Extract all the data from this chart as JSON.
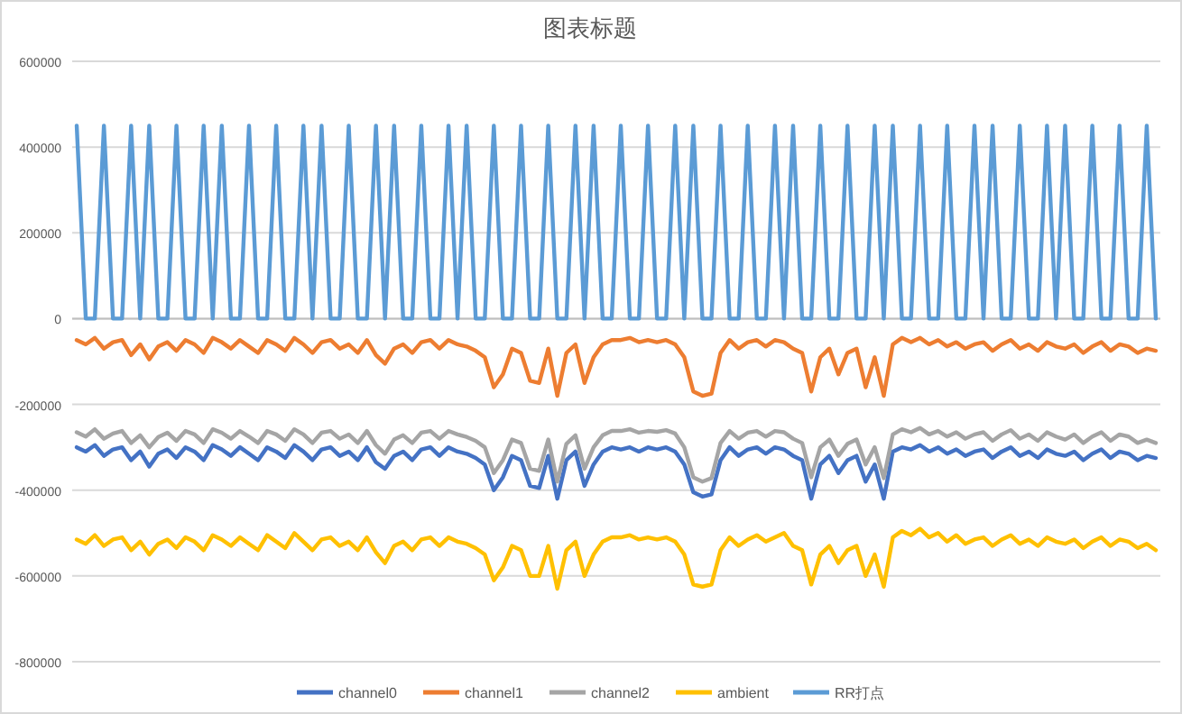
{
  "chart_data": {
    "type": "line",
    "title": "图表标题",
    "categories": [
      null,
      null,
      null,
      null,
      null,
      null,
      null,
      null,
      null,
      null,
      null,
      null,
      null,
      null,
      null,
      null,
      null,
      null,
      null,
      null,
      null,
      null,
      null,
      null,
      null,
      null,
      null,
      null,
      null,
      null,
      null,
      null,
      null,
      null,
      null,
      null,
      null,
      null,
      null,
      null,
      null,
      null,
      null,
      null,
      null,
      null,
      null,
      null,
      null,
      null,
      null,
      null,
      null,
      null,
      null,
      null,
      null,
      null,
      null,
      null,
      null,
      null,
      null,
      null,
      null,
      null,
      null,
      null,
      null,
      null,
      null,
      null,
      null,
      null,
      null,
      null,
      null,
      null,
      null,
      null,
      null,
      null,
      null,
      null,
      null,
      null,
      null,
      null,
      null,
      null,
      null,
      null,
      null,
      null,
      null,
      null,
      null,
      null,
      null,
      null,
      null,
      null,
      null,
      null,
      null,
      null,
      null,
      null,
      null,
      null,
      null,
      null,
      null,
      null,
      null,
      null,
      null,
      null,
      null,
      null
    ],
    "ylim": [
      -800000,
      600000
    ],
    "yticks": [
      -800000,
      -600000,
      -400000,
      -200000,
      0,
      200000,
      400000,
      600000
    ],
    "grid": "y",
    "legend": "bottom",
    "line_style": "solid",
    "marker": "none",
    "series": [
      {
        "name": "channel0",
        "color": "#4472c4",
        "values": [
          -300000,
          -310000,
          -295000,
          -320000,
          -305000,
          -300000,
          -330000,
          -310000,
          -345000,
          -315000,
          -305000,
          -325000,
          -300000,
          -310000,
          -330000,
          -295000,
          -305000,
          -320000,
          -300000,
          -315000,
          -330000,
          -300000,
          -310000,
          -325000,
          -295000,
          -310000,
          -330000,
          -305000,
          -300000,
          -320000,
          -310000,
          -330000,
          -300000,
          -335000,
          -350000,
          -320000,
          -310000,
          -330000,
          -305000,
          -300000,
          -320000,
          -300000,
          -310000,
          -315000,
          -325000,
          -340000,
          -400000,
          -370000,
          -320000,
          -330000,
          -390000,
          -395000,
          -320000,
          -420000,
          -330000,
          -310000,
          -390000,
          -340000,
          -310000,
          -300000,
          -305000,
          -300000,
          -310000,
          -300000,
          -305000,
          -300000,
          -310000,
          -340000,
          -405000,
          -415000,
          -410000,
          -330000,
          -300000,
          -320000,
          -305000,
          -300000,
          -315000,
          -300000,
          -305000,
          -320000,
          -330000,
          -420000,
          -340000,
          -320000,
          -360000,
          -330000,
          -320000,
          -380000,
          -340000,
          -420000,
          -310000,
          -300000,
          -305000,
          -295000,
          -310000,
          -300000,
          -315000,
          -305000,
          -320000,
          -310000,
          -305000,
          -325000,
          -310000,
          -300000,
          -320000,
          -310000,
          -325000,
          -305000,
          -315000,
          -320000,
          -310000,
          -330000,
          -315000,
          -305000,
          -325000,
          -310000,
          -315000,
          -330000,
          -320000,
          -325000
        ]
      },
      {
        "name": "channel1",
        "color": "#ed7d31",
        "values": [
          -50000,
          -60000,
          -45000,
          -70000,
          -55000,
          -50000,
          -85000,
          -60000,
          -95000,
          -65000,
          -55000,
          -75000,
          -50000,
          -60000,
          -80000,
          -45000,
          -55000,
          -70000,
          -50000,
          -65000,
          -80000,
          -50000,
          -60000,
          -75000,
          -45000,
          -60000,
          -80000,
          -55000,
          -50000,
          -70000,
          -60000,
          -80000,
          -50000,
          -85000,
          -105000,
          -70000,
          -60000,
          -80000,
          -55000,
          -50000,
          -70000,
          -50000,
          -60000,
          -65000,
          -75000,
          -90000,
          -160000,
          -130000,
          -70000,
          -80000,
          -145000,
          -150000,
          -70000,
          -180000,
          -80000,
          -60000,
          -150000,
          -90000,
          -60000,
          -50000,
          -50000,
          -45000,
          -55000,
          -50000,
          -55000,
          -50000,
          -60000,
          -90000,
          -170000,
          -180000,
          -175000,
          -80000,
          -50000,
          -70000,
          -55000,
          -50000,
          -65000,
          -50000,
          -55000,
          -70000,
          -80000,
          -170000,
          -90000,
          -70000,
          -130000,
          -80000,
          -70000,
          -160000,
          -90000,
          -180000,
          -60000,
          -45000,
          -55000,
          -45000,
          -60000,
          -50000,
          -65000,
          -55000,
          -70000,
          -60000,
          -55000,
          -75000,
          -60000,
          -50000,
          -70000,
          -60000,
          -75000,
          -55000,
          -65000,
          -70000,
          -60000,
          -80000,
          -65000,
          -55000,
          -75000,
          -60000,
          -65000,
          -80000,
          -70000,
          -75000
        ]
      },
      {
        "name": "channel2",
        "color": "#a5a5a5",
        "values": [
          -265000,
          -275000,
          -258000,
          -280000,
          -268000,
          -262000,
          -290000,
          -272000,
          -300000,
          -276000,
          -266000,
          -285000,
          -262000,
          -270000,
          -290000,
          -258000,
          -266000,
          -280000,
          -262000,
          -275000,
          -290000,
          -262000,
          -270000,
          -285000,
          -258000,
          -270000,
          -290000,
          -266000,
          -262000,
          -280000,
          -270000,
          -290000,
          -262000,
          -295000,
          -315000,
          -282000,
          -272000,
          -290000,
          -266000,
          -262000,
          -280000,
          -262000,
          -270000,
          -276000,
          -285000,
          -300000,
          -360000,
          -330000,
          -282000,
          -290000,
          -350000,
          -355000,
          -282000,
          -380000,
          -292000,
          -272000,
          -350000,
          -300000,
          -272000,
          -262000,
          -262000,
          -258000,
          -266000,
          -262000,
          -264000,
          -260000,
          -268000,
          -300000,
          -370000,
          -380000,
          -372000,
          -290000,
          -262000,
          -280000,
          -266000,
          -262000,
          -275000,
          -262000,
          -265000,
          -280000,
          -290000,
          -370000,
          -300000,
          -282000,
          -320000,
          -292000,
          -282000,
          -340000,
          -300000,
          -372000,
          -270000,
          -258000,
          -265000,
          -255000,
          -270000,
          -262000,
          -275000,
          -265000,
          -280000,
          -270000,
          -265000,
          -285000,
          -270000,
          -260000,
          -280000,
          -270000,
          -285000,
          -265000,
          -275000,
          -282000,
          -270000,
          -290000,
          -275000,
          -265000,
          -285000,
          -270000,
          -275000,
          -290000,
          -282000,
          -290000
        ]
      },
      {
        "name": "ambient",
        "color": "#ffc000",
        "values": [
          -515000,
          -525000,
          -505000,
          -530000,
          -515000,
          -510000,
          -540000,
          -520000,
          -550000,
          -525000,
          -515000,
          -535000,
          -510000,
          -520000,
          -540000,
          -505000,
          -515000,
          -530000,
          -510000,
          -525000,
          -540000,
          -505000,
          -520000,
          -535000,
          -500000,
          -520000,
          -540000,
          -515000,
          -510000,
          -530000,
          -520000,
          -540000,
          -510000,
          -545000,
          -570000,
          -530000,
          -520000,
          -540000,
          -515000,
          -510000,
          -530000,
          -510000,
          -520000,
          -525000,
          -535000,
          -550000,
          -610000,
          -580000,
          -530000,
          -540000,
          -600000,
          -600000,
          -530000,
          -630000,
          -540000,
          -520000,
          -600000,
          -550000,
          -520000,
          -510000,
          -510000,
          -505000,
          -515000,
          -510000,
          -515000,
          -510000,
          -520000,
          -550000,
          -620000,
          -625000,
          -620000,
          -540000,
          -510000,
          -530000,
          -515000,
          -505000,
          -520000,
          -510000,
          -500000,
          -530000,
          -540000,
          -620000,
          -550000,
          -530000,
          -570000,
          -540000,
          -530000,
          -600000,
          -550000,
          -625000,
          -510000,
          -495000,
          -505000,
          -490000,
          -510000,
          -500000,
          -520000,
          -505000,
          -525000,
          -515000,
          -510000,
          -530000,
          -515000,
          -505000,
          -525000,
          -515000,
          -530000,
          -510000,
          -520000,
          -525000,
          -515000,
          -535000,
          -520000,
          -510000,
          -530000,
          -515000,
          -520000,
          -535000,
          -525000,
          -540000
        ]
      },
      {
        "name": "RR打点",
        "color": "#5b9bd5",
        "values": [
          450000,
          0,
          0,
          450000,
          0,
          0,
          450000,
          0,
          450000,
          0,
          0,
          450000,
          0,
          0,
          450000,
          0,
          450000,
          0,
          0,
          450000,
          0,
          0,
          450000,
          0,
          0,
          450000,
          0,
          450000,
          0,
          0,
          450000,
          0,
          0,
          450000,
          0,
          450000,
          0,
          0,
          450000,
          0,
          0,
          450000,
          0,
          450000,
          0,
          0,
          450000,
          0,
          0,
          450000,
          0,
          0,
          450000,
          0,
          0,
          450000,
          0,
          450000,
          0,
          0,
          450000,
          0,
          0,
          450000,
          0,
          0,
          450000,
          0,
          450000,
          0,
          0,
          450000,
          0,
          0,
          450000,
          0,
          0,
          450000,
          0,
          450000,
          0,
          0,
          450000,
          0,
          0,
          450000,
          0,
          0,
          450000,
          0,
          450000,
          0,
          0,
          450000,
          0,
          0,
          450000,
          0,
          0,
          450000,
          0,
          450000,
          0,
          0,
          450000,
          0,
          0,
          450000,
          0,
          450000,
          0,
          0,
          450000,
          0,
          0,
          450000,
          0,
          0,
          450000,
          0
        ]
      }
    ]
  }
}
